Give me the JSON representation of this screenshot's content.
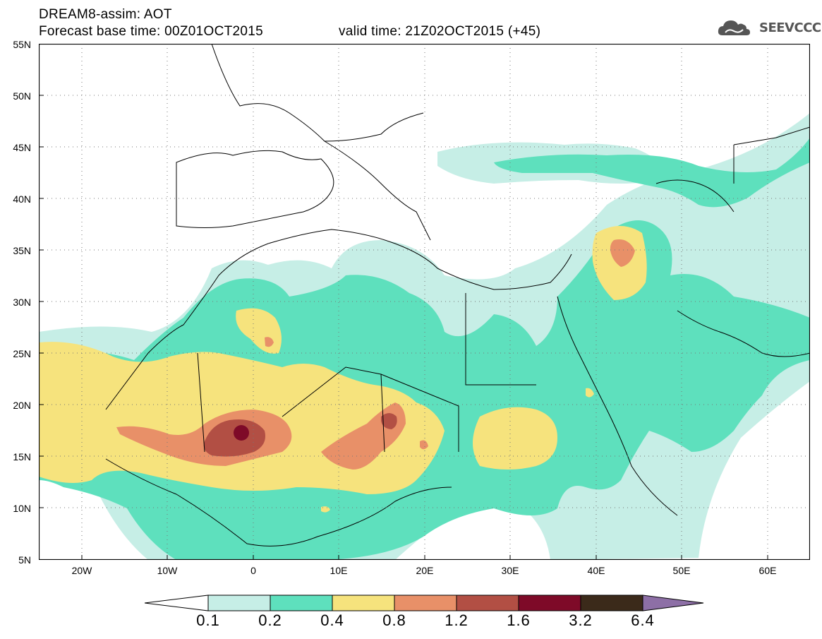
{
  "header": {
    "title": "DREAM8-assim: AOT",
    "base_time": "Forecast base time: 00Z01OCT2015",
    "valid_time": "valid time: 21Z02OCT2015 (+45)"
  },
  "logo": {
    "text": "SEEVCCC",
    "icon": "cloud-icon"
  },
  "map": {
    "lat_labels": [
      "55N",
      "50N",
      "45N",
      "40N",
      "35N",
      "30N",
      "25N",
      "20N",
      "15N",
      "10N",
      "5N"
    ],
    "lon_labels": [
      "20W",
      "10W",
      "0",
      "10E",
      "20E",
      "30E",
      "40E",
      "50E",
      "60E"
    ],
    "lat_range": [
      5,
      55
    ],
    "lon_range": [
      -25,
      65
    ]
  },
  "legend": {
    "labels": [
      "0.1",
      "0.2",
      "0.4",
      "0.8",
      "1.2",
      "1.6",
      "3.2",
      "6.4"
    ],
    "colors": [
      "#ffffff",
      "#c6eee6",
      "#5ee0bd",
      "#f6e37d",
      "#e89068",
      "#b24f44",
      "#7e0a28",
      "#3b2a1a",
      "#8d6fa6"
    ]
  }
}
